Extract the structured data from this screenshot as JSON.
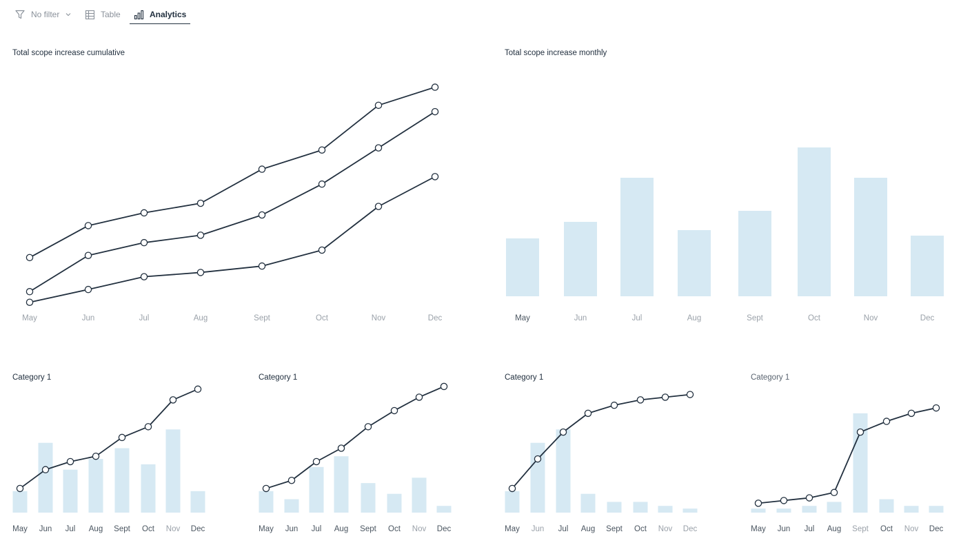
{
  "toolbar": {
    "filter_label": "No filter",
    "table_label": "Table",
    "analytics_label": "Analytics"
  },
  "colors": {
    "line": "#22303f",
    "bar": "#d6e9f3",
    "tick": "#9aa1a9",
    "tick_strong": "#4a5560"
  },
  "chart_data": [
    {
      "id": "cumulative",
      "type": "line",
      "title": "Total scope increase cumulative",
      "categories": [
        "May",
        "Jun",
        "Jul",
        "Aug",
        "Sept",
        "Oct",
        "Nov",
        "Dec"
      ],
      "series": [
        {
          "values": [
            38,
            68,
            80,
            89,
            121,
            139,
            181,
            198
          ]
        },
        {
          "values": [
            6,
            40,
            52,
            59,
            78,
            107,
            141,
            175
          ]
        },
        {
          "values": [
            -4,
            8,
            20,
            24,
            30,
            45,
            86,
            114
          ]
        }
      ],
      "ylim": [
        -10,
        210
      ],
      "grid": false,
      "legend": "none"
    },
    {
      "id": "monthly",
      "type": "bar",
      "title": "Total scope increase monthly",
      "categories": [
        "May",
        "Jun",
        "Jul",
        "Aug",
        "Sept",
        "Oct",
        "Nov",
        "Dec"
      ],
      "values": [
        21,
        27,
        43,
        24,
        31,
        54,
        43,
        22
      ],
      "ylim": [
        0,
        60
      ],
      "grid": false,
      "legend": "none"
    },
    {
      "id": "cat1a",
      "type": "bar",
      "title": "Category 1",
      "categories": [
        "May",
        "Jun",
        "Jul",
        "Aug",
        "Sept",
        "Oct",
        "Nov",
        "Dec"
      ],
      "bar_values": [
        8,
        26,
        16,
        20,
        24,
        18,
        31,
        8
      ],
      "line_values": [
        9,
        16,
        19,
        21,
        28,
        32,
        42,
        46
      ],
      "ylim": [
        0,
        48
      ],
      "grid": false,
      "legend": "none"
    },
    {
      "id": "cat1b",
      "type": "bar",
      "title": "Category 1",
      "categories": [
        "May",
        "Jun",
        "Jul",
        "Aug",
        "Sept",
        "Oct",
        "Nov",
        "Dec"
      ],
      "bar_values": [
        8,
        5,
        17,
        21,
        11,
        7,
        13,
        2.5
      ],
      "line_values": [
        9,
        12,
        19,
        24,
        32,
        38,
        43,
        47
      ],
      "ylim": [
        0,
        48
      ],
      "grid": false,
      "legend": "none"
    },
    {
      "id": "cat1c",
      "type": "bar",
      "title": "Category 1",
      "categories": [
        "May",
        "Jun",
        "Jul",
        "Aug",
        "Sept",
        "Oct",
        "Nov",
        "Dec"
      ],
      "bar_values": [
        8,
        26,
        31,
        7,
        4,
        4,
        2.5,
        1.5
      ],
      "line_values": [
        9,
        20,
        30,
        37,
        40,
        42,
        43,
        44
      ],
      "ylim": [
        0,
        48
      ],
      "grid": false,
      "legend": "none"
    },
    {
      "id": "cat1d",
      "type": "bar",
      "title": "Category 1",
      "categories": [
        "May",
        "Jun",
        "Jul",
        "Aug",
        "Sept",
        "Oct",
        "Nov",
        "Dec"
      ],
      "bar_values": [
        1.5,
        1.5,
        2.5,
        4,
        37,
        5,
        2.5,
        2.5
      ],
      "line_values": [
        3.5,
        4.5,
        5.5,
        7.5,
        30,
        34,
        37,
        39
      ],
      "ylim": [
        0,
        48
      ],
      "grid": false,
      "legend": "none"
    }
  ]
}
